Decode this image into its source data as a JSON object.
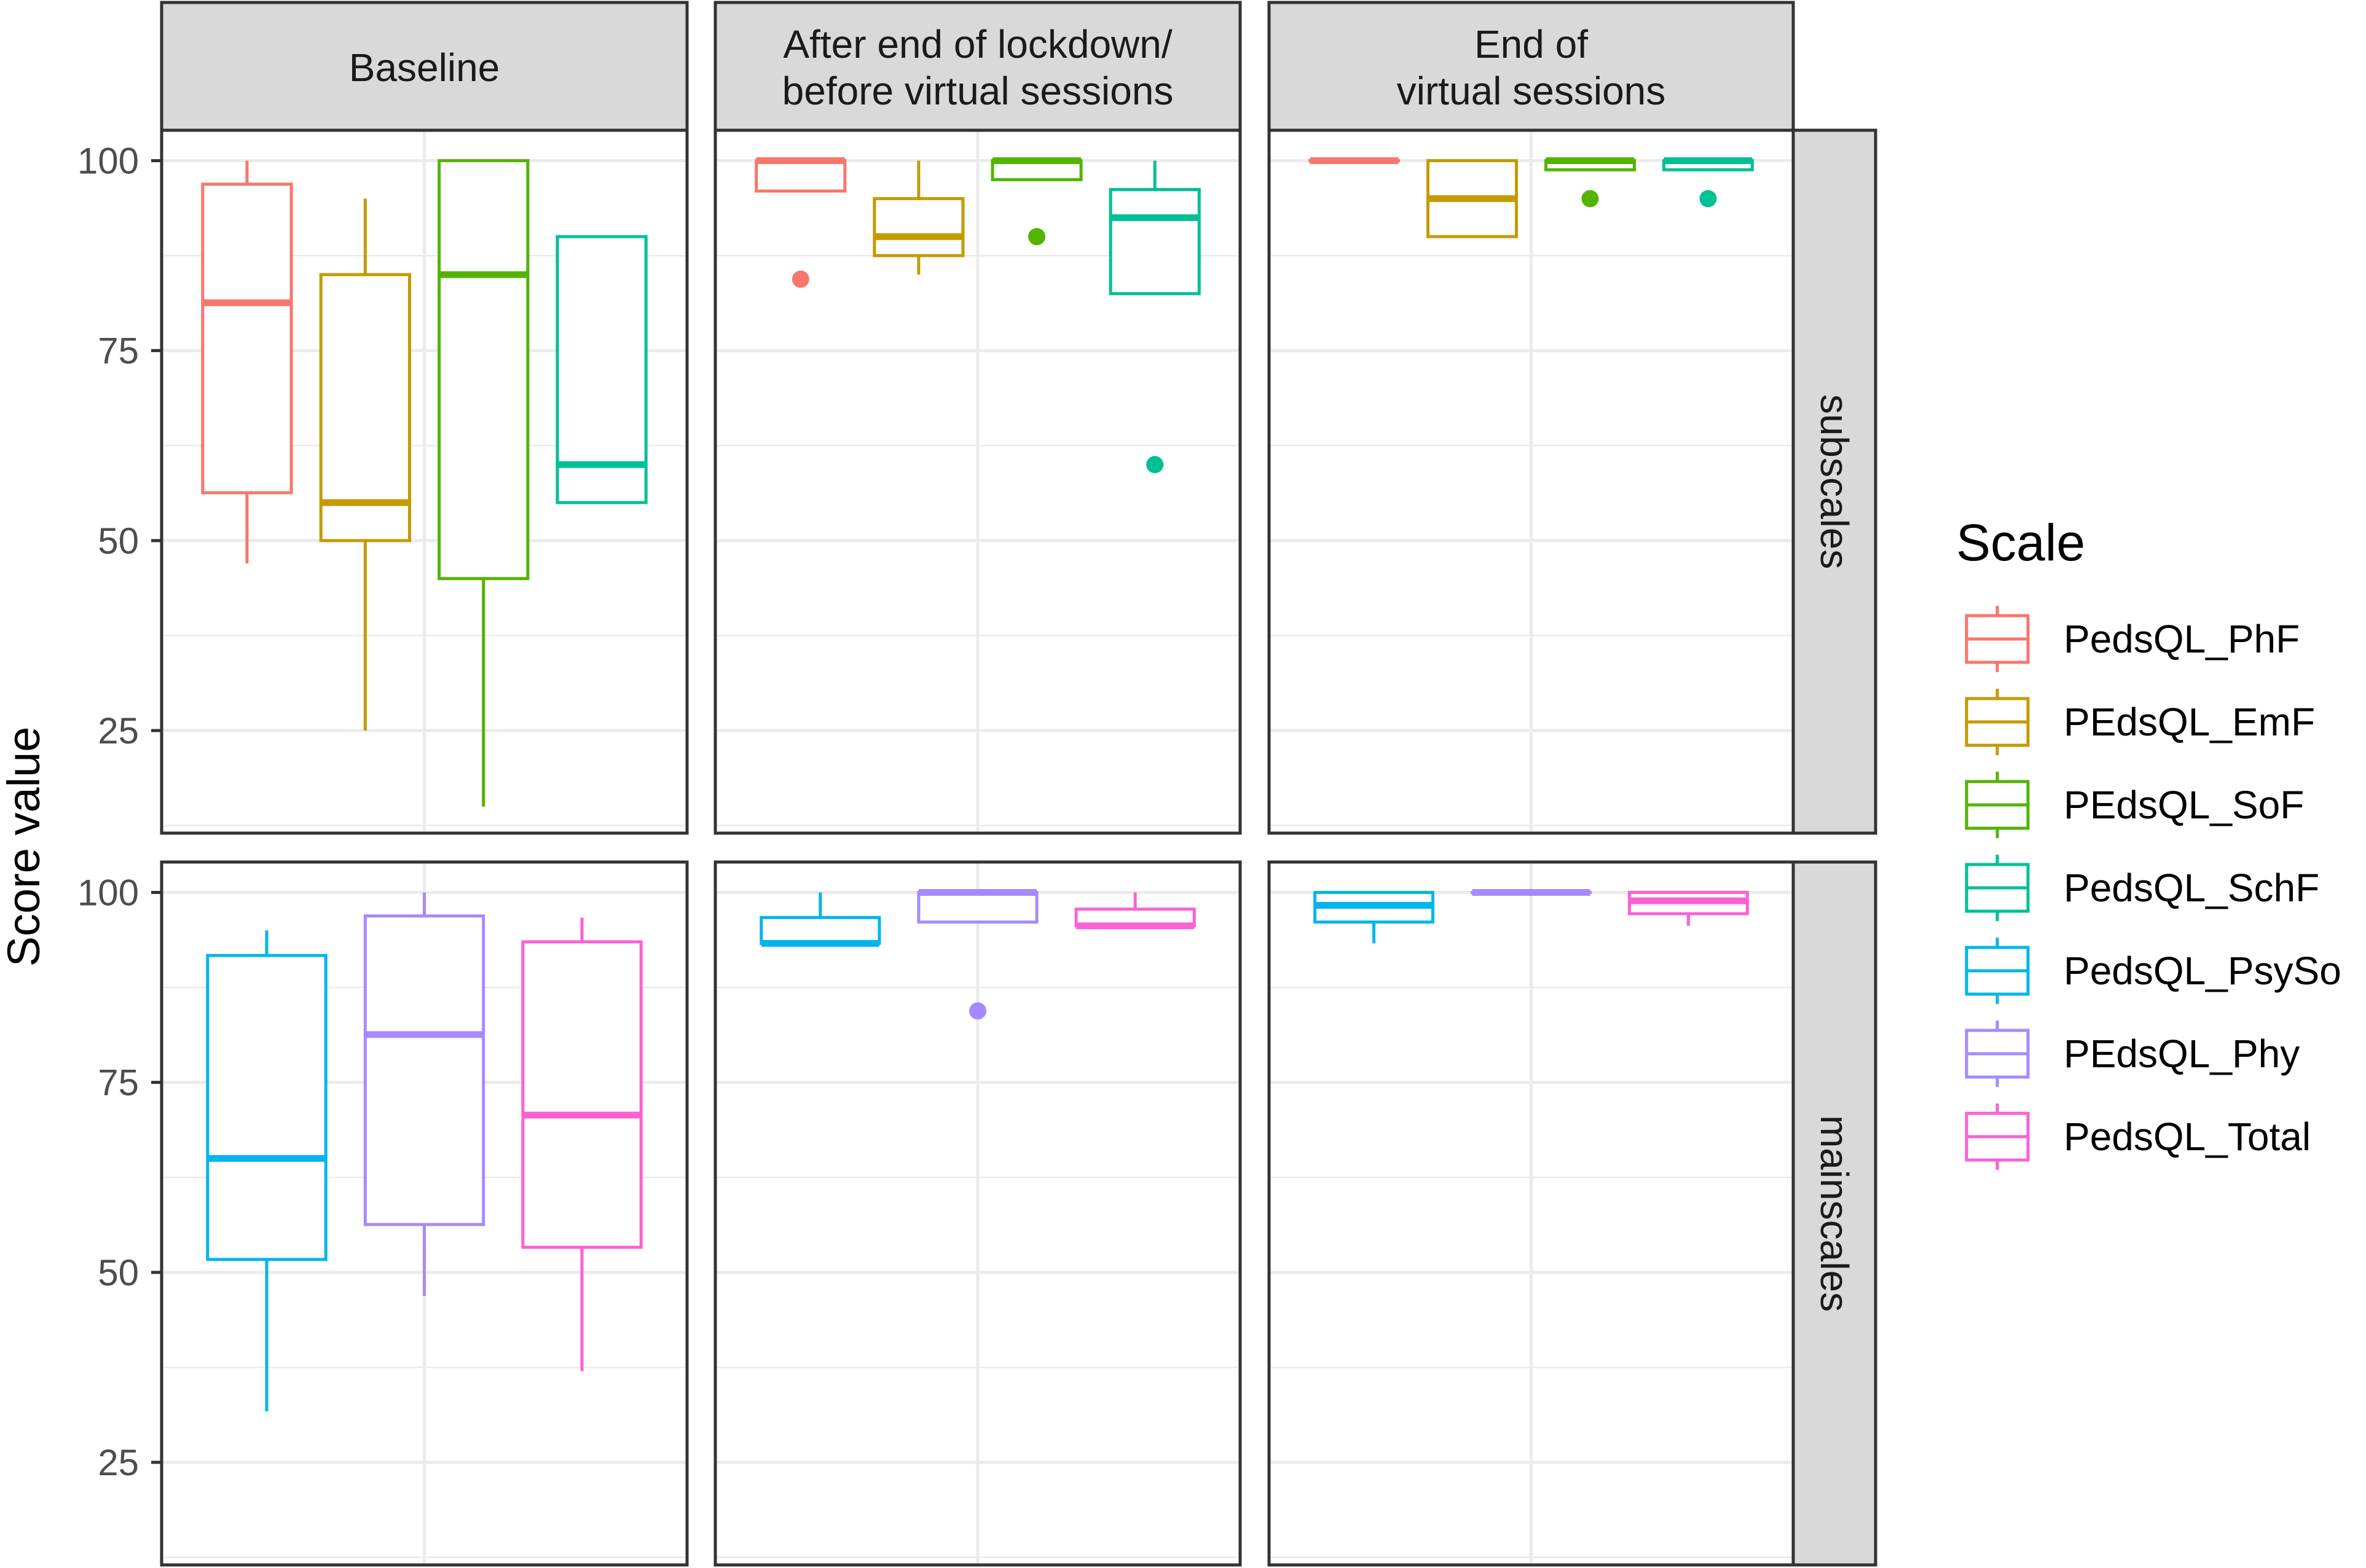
{
  "chart_data": {
    "type": "boxplot",
    "title": "",
    "ylabel": "Score value",
    "xlabel": "",
    "ylim": [
      11.5,
      104
    ],
    "yticks": [
      25,
      50,
      75,
      100
    ],
    "column_facets": [
      "Baseline",
      "After end of lockdown/\nbefore virtual sessions",
      "End of\nvirtual sessions"
    ],
    "row_facets": [
      "subscales",
      "mainscales"
    ],
    "legend": {
      "title": "Scale",
      "position": "right",
      "entries": [
        {
          "name": "PedsQL_PhF",
          "color": "#F8766D"
        },
        {
          "name": "PEdsQL_EmF",
          "color": "#C49A00"
        },
        {
          "name": "PEdsQL_SoF",
          "color": "#53B400"
        },
        {
          "name": "PedsQL_SchF",
          "color": "#00C094"
        },
        {
          "name": "PedsQL_PsySo",
          "color": "#00B6EB"
        },
        {
          "name": "PEdsQL_Phy",
          "color": "#A58AFF"
        },
        {
          "name": "PedsQL_Total",
          "color": "#FB61D7"
        }
      ]
    },
    "panels": [
      {
        "row": 0,
        "col": 0,
        "boxes": [
          {
            "scale": "PedsQL_PhF",
            "color": "#F8766D",
            "pos": 1,
            "min": 47,
            "q1": 56.3,
            "median": 81.3,
            "q3": 96.9,
            "max": 100,
            "outliers": []
          },
          {
            "scale": "PEdsQL_EmF",
            "color": "#C49A00",
            "pos": 2,
            "min": 25,
            "q1": 50,
            "median": 55,
            "q3": 85,
            "max": 95,
            "outliers": []
          },
          {
            "scale": "PEdsQL_SoF",
            "color": "#53B400",
            "pos": 3,
            "min": 15,
            "q1": 45,
            "median": 85,
            "q3": 100,
            "max": 100,
            "outliers": []
          },
          {
            "scale": "PedsQL_SchF",
            "color": "#00C094",
            "pos": 4,
            "min": 55,
            "q1": 55,
            "median": 60,
            "q3": 90,
            "max": 90,
            "outliers": []
          }
        ]
      },
      {
        "row": 0,
        "col": 1,
        "boxes": [
          {
            "scale": "PedsQL_PhF",
            "color": "#F8766D",
            "pos": 1,
            "min": 96,
            "q1": 96,
            "median": 100,
            "q3": 100,
            "max": 100,
            "outliers": [
              84.4
            ]
          },
          {
            "scale": "PEdsQL_EmF",
            "color": "#C49A00",
            "pos": 2,
            "min": 85,
            "q1": 87.5,
            "median": 90,
            "q3": 95,
            "max": 100,
            "outliers": []
          },
          {
            "scale": "PEdsQL_SoF",
            "color": "#53B400",
            "pos": 3,
            "min": 97.5,
            "q1": 97.5,
            "median": 100,
            "q3": 100,
            "max": 100,
            "outliers": [
              90
            ]
          },
          {
            "scale": "PedsQL_SchF",
            "color": "#00C094",
            "pos": 4,
            "min": 82.5,
            "q1": 82.5,
            "median": 92.5,
            "q3": 96.2,
            "max": 100,
            "outliers": [
              60
            ]
          }
        ]
      },
      {
        "row": 0,
        "col": 2,
        "boxes": [
          {
            "scale": "PedsQL_PhF",
            "color": "#F8766D",
            "pos": 1,
            "min": 100,
            "q1": 100,
            "median": 100,
            "q3": 100,
            "max": 100,
            "outliers": []
          },
          {
            "scale": "PEdsQL_EmF",
            "color": "#C49A00",
            "pos": 2,
            "min": 90,
            "q1": 90,
            "median": 95,
            "q3": 100,
            "max": 100,
            "outliers": []
          },
          {
            "scale": "PEdsQL_SoF",
            "color": "#53B400",
            "pos": 3,
            "min": 98.8,
            "q1": 98.8,
            "median": 100,
            "q3": 100,
            "max": 100,
            "outliers": [
              95
            ]
          },
          {
            "scale": "PedsQL_SchF",
            "color": "#00C094",
            "pos": 4,
            "min": 98.8,
            "q1": 98.8,
            "median": 100,
            "q3": 100,
            "max": 100,
            "outliers": [
              95
            ]
          }
        ]
      },
      {
        "row": 1,
        "col": 0,
        "boxes": [
          {
            "scale": "PedsQL_PsySo",
            "color": "#00B6EB",
            "pos": 1,
            "min": 31.7,
            "q1": 51.7,
            "median": 65,
            "q3": 91.7,
            "max": 95,
            "outliers": []
          },
          {
            "scale": "PEdsQL_Phy",
            "color": "#A58AFF",
            "pos": 2,
            "min": 46.9,
            "q1": 56.3,
            "median": 81.3,
            "q3": 96.9,
            "max": 100,
            "outliers": []
          },
          {
            "scale": "PedsQL_Total",
            "color": "#FB61D7",
            "pos": 3,
            "min": 37,
            "q1": 53.3,
            "median": 70.7,
            "q3": 93.5,
            "max": 96.7,
            "outliers": []
          }
        ]
      },
      {
        "row": 1,
        "col": 1,
        "boxes": [
          {
            "scale": "PedsQL_PsySo",
            "color": "#00B6EB",
            "pos": 1,
            "min": 93.3,
            "q1": 93.3,
            "median": 93.3,
            "q3": 96.7,
            "max": 100,
            "outliers": []
          },
          {
            "scale": "PEdsQL_Phy",
            "color": "#A58AFF",
            "pos": 2,
            "min": 96.1,
            "q1": 96.1,
            "median": 100,
            "q3": 100,
            "max": 100,
            "outliers": [
              84.4
            ]
          },
          {
            "scale": "PedsQL_Total",
            "color": "#FB61D7",
            "pos": 3,
            "min": 95.6,
            "q1": 95.6,
            "median": 95.6,
            "q3": 97.8,
            "max": 100,
            "outliers": []
          }
        ]
      },
      {
        "row": 1,
        "col": 2,
        "boxes": [
          {
            "scale": "PedsQL_PsySo",
            "color": "#00B6EB",
            "pos": 1,
            "min": 93.3,
            "q1": 96.1,
            "median": 98.3,
            "q3": 100,
            "max": 100,
            "outliers": []
          },
          {
            "scale": "PEdsQL_Phy",
            "color": "#A58AFF",
            "pos": 2,
            "min": 100,
            "q1": 100,
            "median": 100,
            "q3": 100,
            "max": 100,
            "outliers": []
          },
          {
            "scale": "PedsQL_Total",
            "color": "#FB61D7",
            "pos": 3,
            "min": 95.6,
            "q1": 97.2,
            "median": 98.9,
            "q3": 100,
            "max": 100,
            "outliers": []
          }
        ]
      }
    ]
  }
}
